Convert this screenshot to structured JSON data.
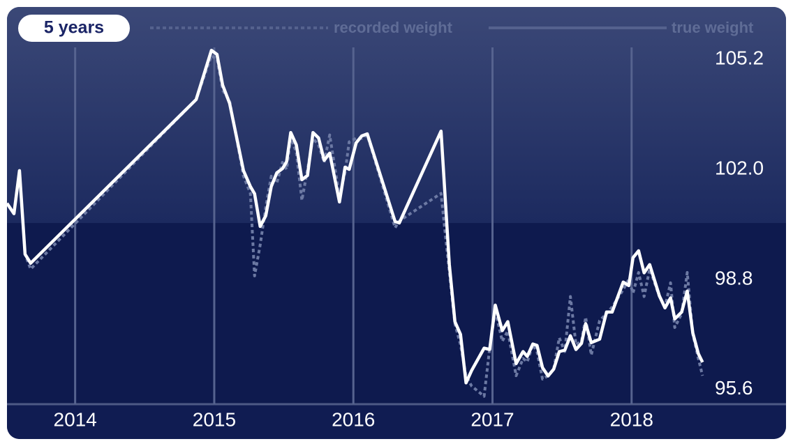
{
  "controls": {
    "range": "5 years"
  },
  "chart_data": {
    "type": "line",
    "x": [
      2013.51,
      2013.56,
      2013.6,
      2013.64,
      2013.68,
      2014.87,
      2014.98,
      2015.02,
      2015.06,
      2015.11,
      2015.21,
      2015.26,
      2015.29,
      2015.33,
      2015.37,
      2015.41,
      2015.45,
      2015.49,
      2015.52,
      2015.55,
      2015.59,
      2015.63,
      2015.67,
      2015.71,
      2015.75,
      2015.79,
      2015.83,
      2015.9,
      2015.94,
      2015.97,
      2016.02,
      2016.06,
      2016.1,
      2016.3,
      2016.33,
      2016.63,
      2016.69,
      2016.73,
      2016.77,
      2016.81,
      2016.85,
      2016.94,
      2016.98,
      2017.02,
      2017.07,
      2017.11,
      2017.17,
      2017.22,
      2017.25,
      2017.29,
      2017.32,
      2017.36,
      2017.4,
      2017.44,
      2017.48,
      2017.52,
      2017.56,
      2017.6,
      2017.64,
      2017.67,
      2017.71,
      2017.77,
      2017.82,
      2017.86,
      2017.94,
      2017.98,
      2018.01,
      2018.05,
      2018.09,
      2018.13,
      2018.2,
      2018.24,
      2018.28,
      2018.31,
      2018.36,
      2018.4,
      2018.44,
      2018.48,
      2018.51
    ],
    "series": [
      {
        "name": "recorded weight",
        "color": "#6c79a3",
        "dash": true,
        "values": [
          101.01,
          100.71,
          101.96,
          99.53,
          99.1,
          104.03,
          105.3,
          105.2,
          104.3,
          104.0,
          101.8,
          101.3,
          98.9,
          99.8,
          100.9,
          101.8,
          101.6,
          102.2,
          102.0,
          102.9,
          102.5,
          101.1,
          102.0,
          102.9,
          102.7,
          102.2,
          103.0,
          101.2,
          101.9,
          102.8,
          102.9,
          102.9,
          103.0,
          100.3,
          100.5,
          101.3,
          99.0,
          97.5,
          96.9,
          96.0,
          95.7,
          95.4,
          96.8,
          97.9,
          97.0,
          97.3,
          96.0,
          96.5,
          96.4,
          96.9,
          96.7,
          95.9,
          96.0,
          96.2,
          97.1,
          96.7,
          98.3,
          96.9,
          97.0,
          97.7,
          96.6,
          97.6,
          97.8,
          98.0,
          98.5,
          98.8,
          98.4,
          99.0,
          98.3,
          99.1,
          98.3,
          98.0,
          98.7,
          97.4,
          97.8,
          99.0,
          97.2,
          96.5,
          96.0
        ]
      },
      {
        "name": "true weight",
        "color": "#ffffff",
        "dash": false,
        "values": [
          101.01,
          100.71,
          101.96,
          99.53,
          99.27,
          104.03,
          105.46,
          105.34,
          104.45,
          103.92,
          101.96,
          101.5,
          101.29,
          100.34,
          100.65,
          101.5,
          101.9,
          102.02,
          102.22,
          103.07,
          102.71,
          101.7,
          101.82,
          103.07,
          102.91,
          102.26,
          102.47,
          101.05,
          102.06,
          102.0,
          102.77,
          102.97,
          103.03,
          100.48,
          100.44,
          103.11,
          99.23,
          97.57,
          97.2,
          95.79,
          96.15,
          96.8,
          96.76,
          98.05,
          97.31,
          97.57,
          96.35,
          96.7,
          96.56,
          96.92,
          96.88,
          96.23,
          95.99,
          96.19,
          96.7,
          96.74,
          97.16,
          96.76,
          96.94,
          97.51,
          96.96,
          97.06,
          97.85,
          97.85,
          98.72,
          98.62,
          99.43,
          99.63,
          98.99,
          99.23,
          98.32,
          97.97,
          98.26,
          97.65,
          97.85,
          98.46,
          97.24,
          96.64,
          96.39
        ]
      }
    ],
    "xlim": [
      2013.51,
      2019.1
    ],
    "xticks": [
      2014,
      2015,
      2016,
      2017,
      2018
    ],
    "ylim": [
      95.15,
      106.68
    ],
    "yticks": [
      105.2,
      {
        "value": 102,
        "label": "102.0"
      },
      98.8,
      95.6
    ],
    "grid": true
  }
}
